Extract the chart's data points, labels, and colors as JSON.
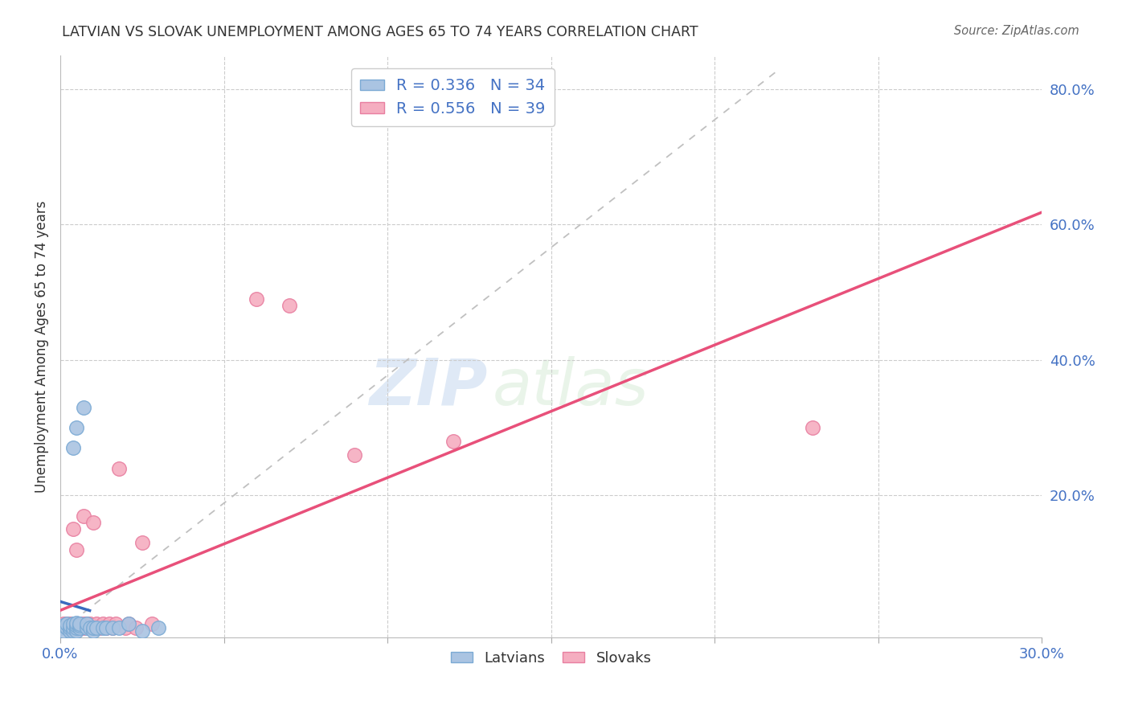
{
  "title": "LATVIAN VS SLOVAK UNEMPLOYMENT AMONG AGES 65 TO 74 YEARS CORRELATION CHART",
  "source": "Source: ZipAtlas.com",
  "ylabel": "Unemployment Among Ages 65 to 74 years",
  "xlim": [
    0.0,
    0.3
  ],
  "ylim": [
    -0.01,
    0.85
  ],
  "latvian_color": "#aac4e2",
  "latvian_edge": "#7baad4",
  "latvian_line_color": "#3a6bbf",
  "slovak_color": "#f5adc0",
  "slovak_edge": "#e87fa0",
  "slovak_line_color": "#e8507a",
  "R_latvian": 0.336,
  "N_latvian": 34,
  "R_slovak": 0.556,
  "N_slovak": 39,
  "watermark_zip": "ZIP",
  "watermark_atlas": "atlas",
  "background_color": "#ffffff",
  "grid_color": "#cccccc",
  "diag_color": "#c0c0c0",
  "lx": [
    0.0,
    0.001,
    0.001,
    0.002,
    0.002,
    0.003,
    0.003,
    0.003,
    0.004,
    0.004,
    0.004,
    0.004,
    0.005,
    0.005,
    0.005,
    0.005,
    0.005,
    0.006,
    0.006,
    0.006,
    0.007,
    0.008,
    0.008,
    0.009,
    0.01,
    0.01,
    0.011,
    0.013,
    0.014,
    0.016,
    0.018,
    0.021,
    0.025,
    0.03
  ],
  "ly": [
    0.005,
    0.0,
    0.008,
    0.005,
    0.01,
    0.0,
    0.005,
    0.008,
    0.0,
    0.005,
    0.01,
    0.27,
    0.0,
    0.005,
    0.008,
    0.012,
    0.3,
    0.005,
    0.008,
    0.01,
    0.33,
    0.005,
    0.01,
    0.005,
    0.0,
    0.005,
    0.005,
    0.005,
    0.005,
    0.005,
    0.005,
    0.01,
    0.0,
    0.005
  ],
  "sx": [
    0.0,
    0.001,
    0.002,
    0.002,
    0.003,
    0.003,
    0.004,
    0.004,
    0.005,
    0.005,
    0.006,
    0.006,
    0.007,
    0.007,
    0.007,
    0.008,
    0.008,
    0.009,
    0.009,
    0.01,
    0.01,
    0.011,
    0.012,
    0.013,
    0.014,
    0.015,
    0.016,
    0.017,
    0.018,
    0.02,
    0.021,
    0.023,
    0.025,
    0.028,
    0.06,
    0.07,
    0.09,
    0.12,
    0.23
  ],
  "sy": [
    0.005,
    0.01,
    0.005,
    0.01,
    0.005,
    0.01,
    0.005,
    0.15,
    0.005,
    0.12,
    0.005,
    0.01,
    0.005,
    0.01,
    0.17,
    0.005,
    0.01,
    0.005,
    0.01,
    0.005,
    0.16,
    0.01,
    0.005,
    0.01,
    0.005,
    0.01,
    0.005,
    0.01,
    0.24,
    0.005,
    0.01,
    0.005,
    0.13,
    0.01,
    0.49,
    0.48,
    0.26,
    0.28,
    0.3
  ]
}
